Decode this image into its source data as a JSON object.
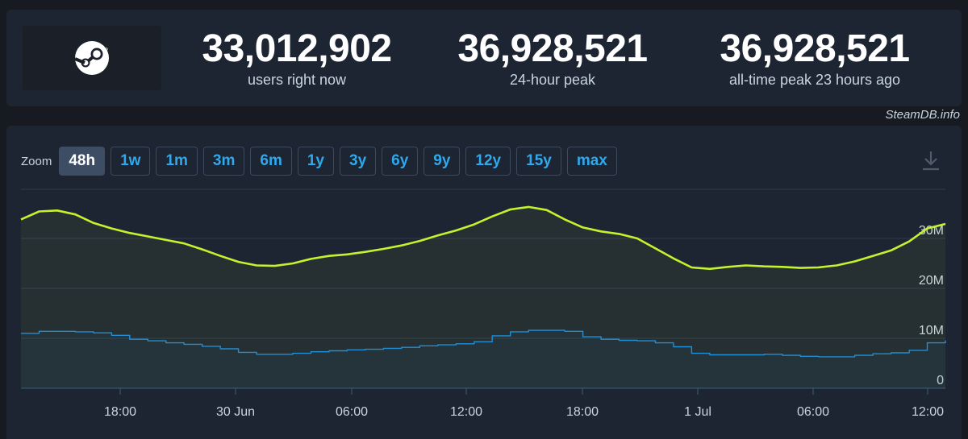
{
  "stats": [
    {
      "value": "33,012,902",
      "label": "users right now"
    },
    {
      "value": "36,928,521",
      "label": "24-hour peak"
    },
    {
      "value": "36,928,521",
      "label": "all-time peak 23 hours ago"
    }
  ],
  "credit": "SteamDB.info",
  "logo_icon": "steam-logo-icon",
  "zoom": {
    "label": "Zoom",
    "options": [
      "48h",
      "1w",
      "1m",
      "3m",
      "6m",
      "1y",
      "3y",
      "6y",
      "9y",
      "12y",
      "15y",
      "max"
    ],
    "active": "48h"
  },
  "download_icon": "download-icon",
  "colors": {
    "users": "#c3f32f",
    "in_game": "#1f8fd8",
    "accent": "#2fa8ec"
  },
  "chart_data": {
    "type": "line",
    "x_ticks": [
      "18:00",
      "30 Jun",
      "06:00",
      "12:00",
      "18:00",
      "1 Jul",
      "06:00",
      "12:00"
    ],
    "y_ticks": [
      "0",
      "10M",
      "20M",
      "30M"
    ],
    "ylim": [
      0,
      40000000
    ],
    "series": [
      {
        "values": [
          33.8,
          35.4,
          35.6,
          34.8,
          33.1,
          32.0,
          31.1,
          30.4,
          29.7,
          29.0,
          27.8,
          26.5,
          25.3,
          24.6,
          24.5,
          25.0,
          25.9,
          26.5,
          26.8,
          27.3,
          27.9,
          28.6,
          29.5,
          30.6,
          31.6,
          32.8,
          34.4,
          35.8,
          36.3,
          35.7,
          33.8,
          32.2,
          31.4,
          30.9,
          30.0,
          28.0,
          26.0,
          24.2,
          23.9,
          24.3,
          24.6,
          24.4,
          24.3,
          24.1,
          24.2,
          24.6,
          25.4,
          26.5,
          27.6,
          29.4,
          32.0,
          32.9
        ]
      },
      {
        "values": [
          11.0,
          11.4,
          11.4,
          11.3,
          11.1,
          10.6,
          9.8,
          9.5,
          9.1,
          8.8,
          8.4,
          7.9,
          7.2,
          6.8,
          6.8,
          7.0,
          7.3,
          7.5,
          7.7,
          7.8,
          8.0,
          8.2,
          8.5,
          8.7,
          8.9,
          9.3,
          10.5,
          11.3,
          11.6,
          11.6,
          11.4,
          10.3,
          9.8,
          9.6,
          9.5,
          9.1,
          8.3,
          7.0,
          6.7,
          6.7,
          6.7,
          6.8,
          6.6,
          6.4,
          6.3,
          6.3,
          6.6,
          6.9,
          7.1,
          7.6,
          9.1,
          9.6
        ]
      }
    ]
  }
}
